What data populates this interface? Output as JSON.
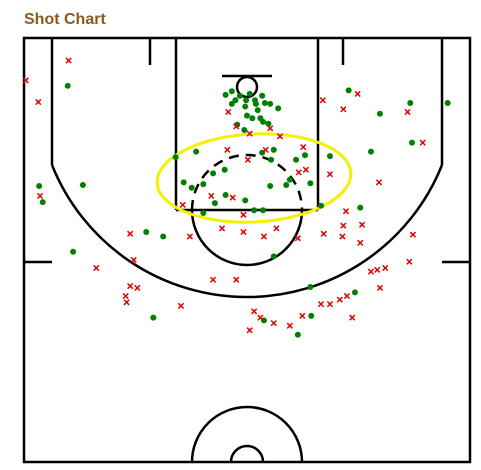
{
  "chart_data": {
    "type": "scatter",
    "title": "Shot Chart",
    "xlim": [
      -25,
      25
    ],
    "ylim": [
      0,
      47
    ],
    "series": [
      {
        "color": "#008000",
        "marker": "o",
        "x": [
          -20.1,
          -1.7,
          -2.4,
          -0.8,
          -1.3,
          0.3,
          -0.1,
          0.9,
          1.7,
          1.0,
          2.0,
          2.6,
          3.5,
          -0.2,
          -1.7,
          1.2,
          0,
          0.6,
          1.5,
          -1.1,
          -0.3,
          1.8,
          2.4,
          11.4,
          14.9,
          18.3,
          18.5,
          22.5,
          13.9,
          -5.7,
          -8.0,
          1.7,
          3.0,
          2.7,
          5.5,
          6.5,
          9.3,
          -7.1,
          -4.9,
          -6.2,
          -2.5,
          -3.8,
          2.6,
          4.4,
          4.8,
          7.1,
          -0.2,
          0.8,
          1.8,
          -4.9,
          -3.6,
          -2.4,
          -23.3,
          -22.9,
          -18.4,
          -11.3,
          -9.4,
          3.0,
          -19.5,
          7.1,
          7.2,
          1.9,
          -10.5,
          5.7,
          12.1,
          8.3,
          12.7
        ],
        "values": [
          5.3,
          5.9,
          6.3,
          6.4,
          6.9,
          6.2,
          6.9,
          6.9,
          6.4,
          7.3,
          7.2,
          7.3,
          7.8,
          7.6,
          7.3,
          8.0,
          8.6,
          8.9,
          8.9,
          9.6,
          10.2,
          9.3,
          9.5,
          5.8,
          8.4,
          7.2,
          11.6,
          7.2,
          12.6,
          12.6,
          13.2,
          12.7,
          12.4,
          13.5,
          13.5,
          13.0,
          13.1,
          16.0,
          16.2,
          16.6,
          14.6,
          15.0,
          16.4,
          16.3,
          15.7,
          16.1,
          18.0,
          19.1,
          19.1,
          19.4,
          18.3,
          17.4,
          16.4,
          18.2,
          16.3,
          21.5,
          22.0,
          24.2,
          23.7,
          27.6,
          30.8,
          31.3,
          31.0,
          32.9,
          28.2,
          18.6,
          18.8
        ]
      },
      {
        "color": "#e00000",
        "marker": "x",
        "x": [
          -24.8,
          -20.0,
          -23.4,
          8.5,
          12.4,
          10.8,
          18.0,
          -2.1,
          -1.2,
          0.3,
          2.6,
          3.7,
          6.3,
          2.1,
          0.1,
          -2.2,
          5.8,
          6.6,
          9.3,
          14.8,
          19.7,
          -23.2,
          -4.0,
          -1.6,
          -0.4,
          -7.2,
          -2.8,
          -0.4,
          1.9,
          5.7,
          -6.4,
          -13.1,
          11.1,
          10.8,
          12.9,
          8.6,
          10.7,
          12.7,
          18.6,
          15.5,
          14.6,
          13.9,
          18.2,
          11.2,
          10.4,
          8.3,
          9.3,
          11.8,
          14.9,
          3.3,
          -3.8,
          -1.2,
          -16.9,
          -12.7,
          -13.1,
          -12.3,
          -13.6,
          -13.5,
          -7.4,
          0.8,
          1.5,
          0.3,
          3.0,
          4.8,
          6.2
        ],
        "values": [
          4.7,
          2.5,
          7.1,
          6.9,
          6.2,
          7.9,
          8.2,
          8.2,
          9.8,
          10.6,
          10.0,
          10.9,
          12.1,
          12.4,
          13.5,
          12.4,
          14.9,
          14.6,
          15.1,
          16.0,
          11.6,
          17.5,
          17.5,
          17.7,
          19.6,
          18.5,
          21.1,
          21.5,
          22.0,
          22.2,
          22.0,
          21.7,
          19.2,
          20.8,
          20.7,
          21.7,
          22.0,
          22.7,
          21.8,
          25.5,
          25.7,
          25.9,
          24.8,
          28.6,
          29.0,
          29.5,
          29.5,
          31.0,
          27.7,
          21.1,
          26.8,
          26.8,
          25.5,
          24.6,
          27.5,
          27.7,
          28.6,
          29.3,
          29.7,
          30.3,
          31.0,
          32.4,
          31.6,
          31.9,
          30.8
        ]
      }
    ]
  }
}
